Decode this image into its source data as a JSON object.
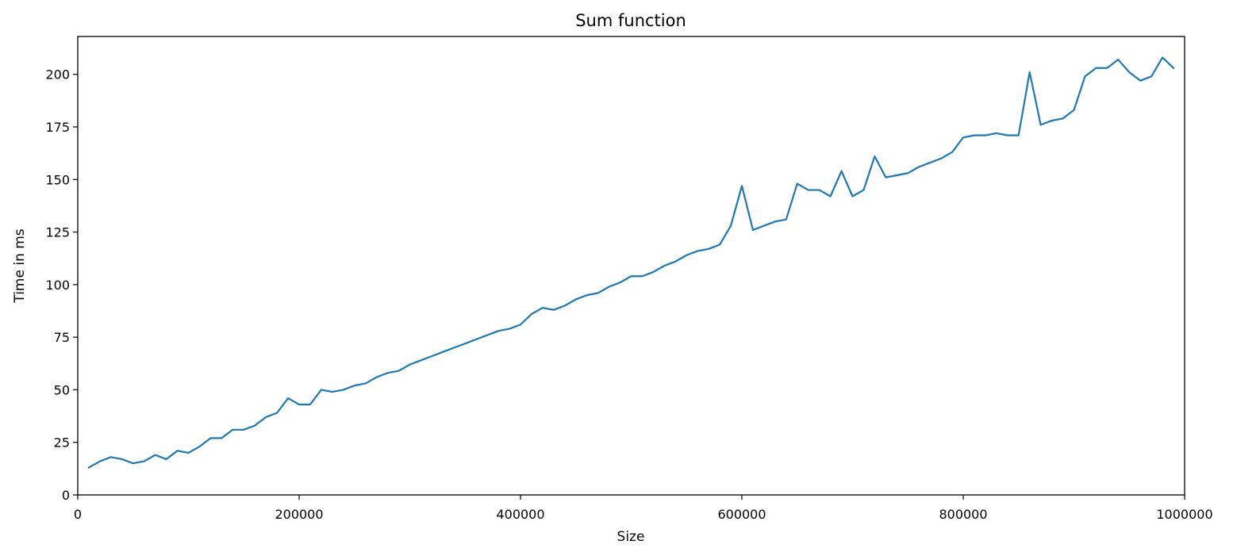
{
  "chart_data": {
    "type": "line",
    "title": "Sum function",
    "xlabel": "Size",
    "ylabel": "Time in ms",
    "xlim": [
      0,
      1000000
    ],
    "ylim": [
      0,
      218
    ],
    "x_ticks": [
      0,
      200000,
      400000,
      600000,
      800000,
      1000000
    ],
    "x_tick_labels": [
      "0",
      "200000",
      "400000",
      "600000",
      "800000",
      "1000000"
    ],
    "y_ticks": [
      0,
      25,
      50,
      75,
      100,
      125,
      150,
      175,
      200
    ],
    "y_tick_labels": [
      "0",
      "25",
      "50",
      "75",
      "100",
      "125",
      "150",
      "175",
      "200"
    ],
    "grid": false,
    "legend": "none",
    "series": [
      {
        "color": "#1f77b4",
        "x": [
          10000,
          20000,
          30000,
          40000,
          50000,
          60000,
          70000,
          80000,
          90000,
          100000,
          110000,
          120000,
          130000,
          140000,
          150000,
          160000,
          170000,
          180000,
          190000,
          200000,
          210000,
          220000,
          230000,
          240000,
          250000,
          260000,
          270000,
          280000,
          290000,
          300000,
          310000,
          320000,
          330000,
          340000,
          350000,
          360000,
          370000,
          380000,
          390000,
          400000,
          410000,
          420000,
          430000,
          440000,
          450000,
          460000,
          470000,
          480000,
          490000,
          500000,
          510000,
          520000,
          530000,
          540000,
          550000,
          560000,
          570000,
          580000,
          590000,
          600000,
          610000,
          620000,
          630000,
          640000,
          650000,
          660000,
          670000,
          680000,
          690000,
          700000,
          710000,
          720000,
          730000,
          740000,
          750000,
          760000,
          770000,
          780000,
          790000,
          800000,
          810000,
          820000,
          830000,
          840000,
          850000,
          860000,
          870000,
          880000,
          890000,
          900000,
          910000,
          920000,
          930000,
          940000,
          950000,
          960000,
          970000,
          980000,
          990000
        ],
        "y": [
          13,
          16,
          18,
          17,
          15,
          16,
          19,
          17,
          21,
          20,
          23,
          27,
          27,
          31,
          31,
          33,
          37,
          39,
          46,
          43,
          43,
          50,
          49,
          50,
          52,
          53,
          56,
          58,
          59,
          62,
          64,
          66,
          68,
          70,
          72,
          74,
          76,
          78,
          79,
          81,
          86,
          89,
          88,
          90,
          93,
          95,
          96,
          99,
          101,
          104,
          104,
          106,
          109,
          111,
          114,
          116,
          117,
          119,
          128,
          147,
          126,
          128,
          130,
          131,
          148,
          145,
          145,
          142,
          154,
          142,
          145,
          161,
          151,
          152,
          153,
          156,
          158,
          160,
          163,
          170,
          171,
          171,
          172,
          171,
          171,
          201,
          176,
          178,
          179,
          183,
          199,
          203,
          203,
          207,
          201,
          197,
          199,
          208,
          203
        ]
      }
    ]
  }
}
